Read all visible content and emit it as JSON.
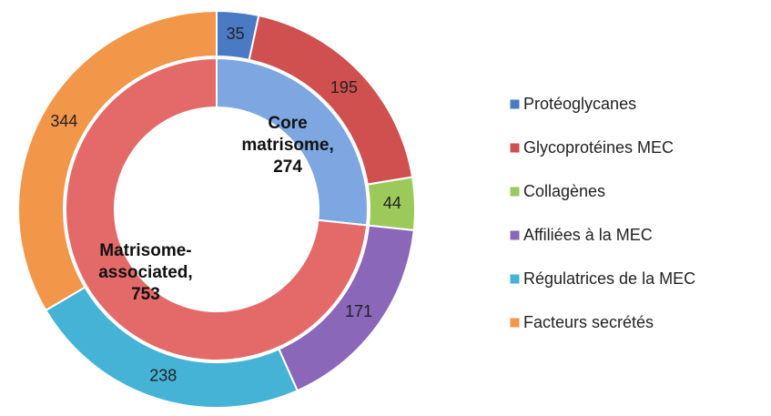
{
  "chart_data": {
    "type": "donut",
    "series": [
      {
        "name": "ring",
        "categories": [
          "Protéoglycanes",
          "Glycoprotéines MEC",
          "Collagènes",
          "Affiliées à la MEC",
          "Régulatrices de la MEC",
          "Facteurs secrétés"
        ],
        "values": [
          35,
          195,
          44,
          171,
          238,
          344
        ],
        "colors": [
          "#4a7ac4",
          "#d04f4f",
          "#9bc95a",
          "#8a67b8",
          "#45b3d6",
          "#f2964a"
        ]
      },
      {
        "name": "core",
        "categories": [
          "Core matrisome,",
          "Matrisome-associated,"
        ],
        "values": [
          274,
          753
        ],
        "colors": [
          "#7ea6e0",
          "#e46a6a"
        ]
      }
    ],
    "legend": "right"
  }
}
